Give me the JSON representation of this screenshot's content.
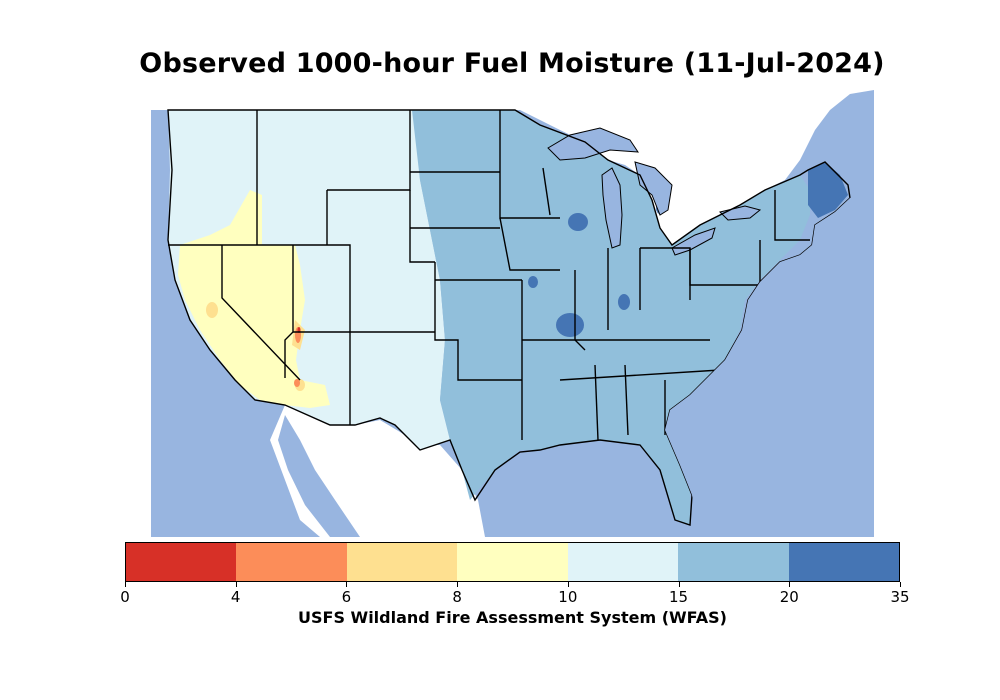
{
  "title": "Observed 1000-hour Fuel Moisture (11-Jul-2024)",
  "source": "USFS Wildland Fire Assessment System (WFAS)",
  "colorbar": {
    "bins": [
      {
        "min": 0,
        "max": 4,
        "color": "#d73027"
      },
      {
        "min": 4,
        "max": 6,
        "color": "#fc8d59"
      },
      {
        "min": 6,
        "max": 8,
        "color": "#fee090"
      },
      {
        "min": 8,
        "max": 10,
        "color": "#ffffbf"
      },
      {
        "min": 10,
        "max": 15,
        "color": "#e0f3f8"
      },
      {
        "min": 15,
        "max": 20,
        "color": "#91bfdb"
      },
      {
        "min": 20,
        "max": 35,
        "color": "#4575b4"
      }
    ],
    "tick_labels": [
      "0",
      "4",
      "6",
      "8",
      "10",
      "15",
      "20",
      "35"
    ]
  },
  "map_colors": {
    "water": "#98b5e0",
    "land_outside": "#ffffff",
    "border": "#000000"
  }
}
